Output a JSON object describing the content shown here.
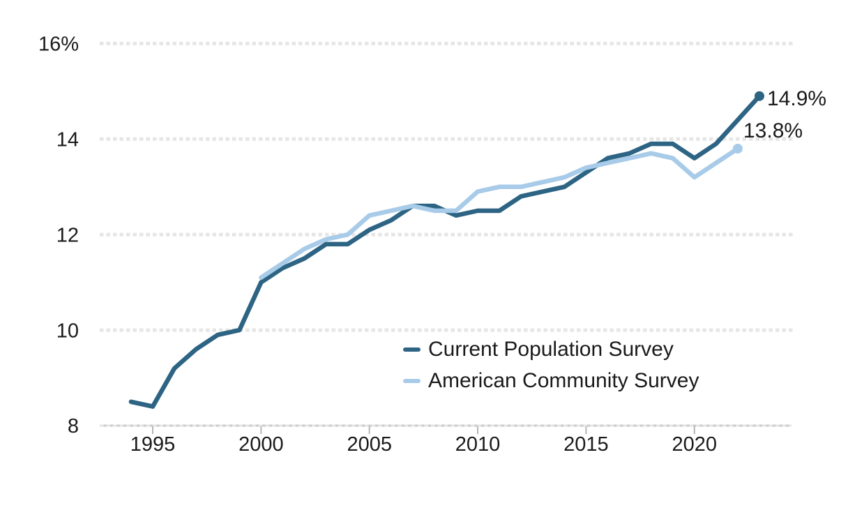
{
  "chart_data": {
    "type": "line",
    "title": "",
    "xlabel": "",
    "ylabel": "",
    "unit": "%",
    "grid": "dotted-horizontal",
    "legend_position": "inside-lower-center",
    "y_axis": {
      "range": [
        8,
        16
      ],
      "ticks": [
        {
          "value": 16,
          "label": "16%"
        },
        {
          "value": 14,
          "label": "14"
        },
        {
          "value": 12,
          "label": "12"
        },
        {
          "value": 10,
          "label": "10"
        },
        {
          "value": 8,
          "label": "8"
        }
      ]
    },
    "x_axis": {
      "range": [
        1994,
        2023
      ],
      "ticks": [
        {
          "value": 1995,
          "label": "1995"
        },
        {
          "value": 2000,
          "label": "2000"
        },
        {
          "value": 2005,
          "label": "2005"
        },
        {
          "value": 2010,
          "label": "2010"
        },
        {
          "value": 2015,
          "label": "2015"
        },
        {
          "value": 2020,
          "label": "2020"
        }
      ]
    },
    "series": [
      {
        "name": "Current Population Survey",
        "color": "#2d6484",
        "end_label": "14.9%",
        "points": [
          [
            1994,
            8.5
          ],
          [
            1995,
            8.4
          ],
          [
            1996,
            9.2
          ],
          [
            1997,
            9.6
          ],
          [
            1998,
            9.9
          ],
          [
            1999,
            10.0
          ],
          [
            2000,
            11.0
          ],
          [
            2001,
            11.3
          ],
          [
            2002,
            11.5
          ],
          [
            2003,
            11.8
          ],
          [
            2004,
            11.8
          ],
          [
            2005,
            12.1
          ],
          [
            2006,
            12.3
          ],
          [
            2007,
            12.6
          ],
          [
            2008,
            12.6
          ],
          [
            2009,
            12.4
          ],
          [
            2010,
            12.5
          ],
          [
            2011,
            12.5
          ],
          [
            2012,
            12.8
          ],
          [
            2013,
            12.9
          ],
          [
            2014,
            13.0
          ],
          [
            2015,
            13.3
          ],
          [
            2016,
            13.6
          ],
          [
            2017,
            13.7
          ],
          [
            2018,
            13.9
          ],
          [
            2019,
            13.9
          ],
          [
            2020,
            13.6
          ],
          [
            2021,
            13.9
          ],
          [
            2022,
            14.4
          ],
          [
            2023,
            14.9
          ]
        ]
      },
      {
        "name": "American Community Survey",
        "color": "#a7cbe8",
        "end_label": "13.8%",
        "points": [
          [
            2000,
            11.1
          ],
          [
            2001,
            11.4
          ],
          [
            2002,
            11.7
          ],
          [
            2003,
            11.9
          ],
          [
            2004,
            12.0
          ],
          [
            2005,
            12.4
          ],
          [
            2006,
            12.5
          ],
          [
            2007,
            12.6
          ],
          [
            2008,
            12.5
          ],
          [
            2009,
            12.5
          ],
          [
            2010,
            12.9
          ],
          [
            2011,
            13.0
          ],
          [
            2012,
            13.0
          ],
          [
            2013,
            13.1
          ],
          [
            2014,
            13.2
          ],
          [
            2015,
            13.4
          ],
          [
            2016,
            13.5
          ],
          [
            2017,
            13.6
          ],
          [
            2018,
            13.7
          ],
          [
            2019,
            13.6
          ],
          [
            2020,
            13.2
          ],
          [
            2021,
            13.5
          ],
          [
            2022,
            13.8
          ]
        ]
      }
    ]
  },
  "legend": {
    "items": [
      {
        "label": "Current Population Survey",
        "color": "#2d6484"
      },
      {
        "label": "American Community Survey",
        "color": "#a7cbe8"
      }
    ]
  },
  "colors": {
    "text": "#1a1a1a",
    "gridline": "#e6e6e6",
    "axis_line": "#c9c9c9",
    "tick_mark": "#b5b5b5"
  }
}
